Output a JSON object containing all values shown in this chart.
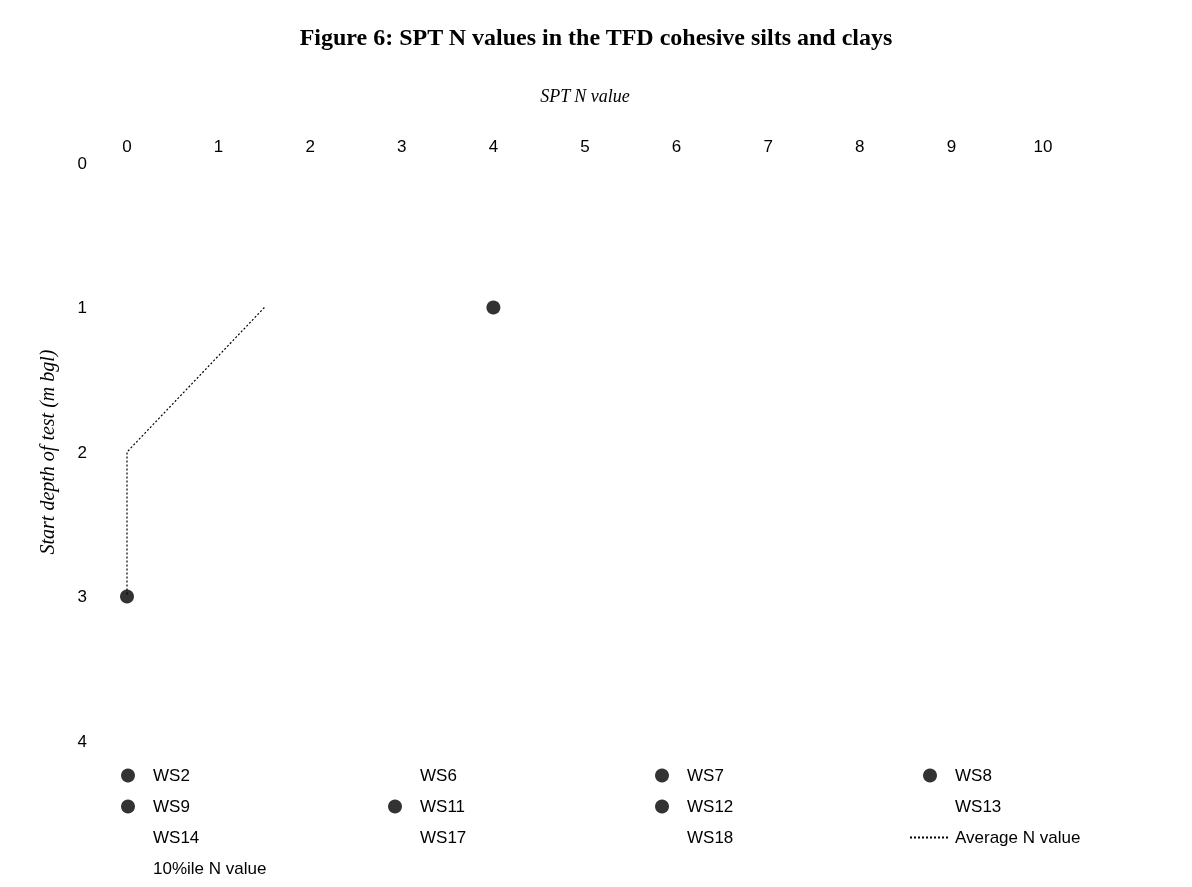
{
  "chart_data": {
    "type": "scatter",
    "title": "Figure 6: SPT N values in the TFD cohesive silts and clays",
    "xlabel": "SPT N value",
    "ylabel": "Start depth of test (m bgl)",
    "xlim": [
      0,
      10
    ],
    "xticks": [
      0,
      1,
      2,
      3,
      4,
      5,
      6,
      7,
      8,
      9,
      10
    ],
    "ylim": [
      4,
      0
    ],
    "yticks": [
      0,
      1,
      2,
      3,
      4
    ],
    "grid": false,
    "legend": "bottom",
    "marker": "circle",
    "series": [
      {
        "name": "WS2",
        "color": "#000000",
        "x": [
          4
        ],
        "values": [
          1
        ]
      },
      {
        "name": "WS6"
      },
      {
        "name": "WS7",
        "color": "#000000",
        "x": [
          0
        ],
        "values": [
          3
        ]
      },
      {
        "name": "WS8",
        "color": "#000000"
      },
      {
        "name": "WS9",
        "color": "#000000"
      },
      {
        "name": "WS11",
        "color": "#000000"
      },
      {
        "name": "WS12",
        "color": "#000000"
      },
      {
        "name": "WS13"
      },
      {
        "name": "WS14"
      },
      {
        "name": "WS17"
      },
      {
        "name": "WS18"
      },
      {
        "name": "Average N value",
        "type": "line",
        "line_style": "dotted",
        "marker": "none",
        "color": "#000000",
        "x": [
          1.5,
          0,
          0
        ],
        "values": [
          1,
          2,
          3
        ]
      },
      {
        "name": "10%ile N value",
        "type": "line"
      }
    ]
  }
}
